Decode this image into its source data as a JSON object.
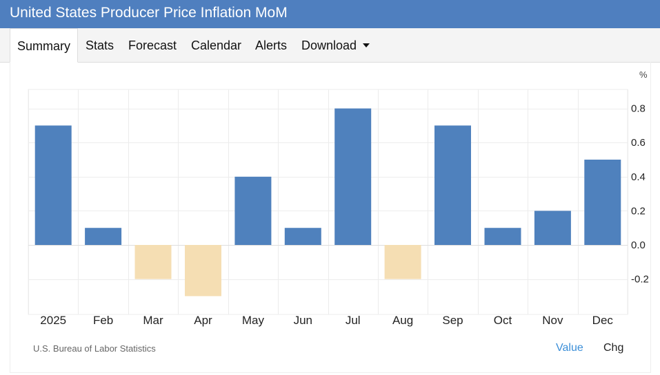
{
  "header": {
    "title": "United States Producer Price Inflation MoM"
  },
  "tabs": [
    {
      "label": "Summary",
      "active": true
    },
    {
      "label": "Stats"
    },
    {
      "label": "Forecast"
    },
    {
      "label": "Calendar"
    },
    {
      "label": "Alerts"
    },
    {
      "label": "Download",
      "icon": "caret-down-icon"
    }
  ],
  "chart_data": {
    "type": "bar",
    "title": "",
    "unit": "%",
    "categories": [
      "2025",
      "Feb",
      "Mar",
      "Apr",
      "May",
      "Jun",
      "Jul",
      "Aug",
      "Sep",
      "Oct",
      "Nov",
      "Dec"
    ],
    "values": [
      0.7,
      0.1,
      -0.2,
      -0.3,
      0.4,
      0.1,
      0.8,
      -0.2,
      0.7,
      0.1,
      0.2,
      0.5
    ],
    "ylim": [
      -0.4,
      0.9
    ],
    "yticks": [
      "0.8",
      "0.6",
      "0.4",
      "0.2",
      "0.0",
      "-0.2"
    ],
    "ytick_values": [
      0.8,
      0.6,
      0.4,
      0.2,
      0.0,
      -0.2
    ],
    "colors": {
      "positive": "#4f81bd",
      "negative": "#f5deb3",
      "grid": "#ececec",
      "zero_line": "#dddddd"
    },
    "grid": true,
    "axis_position": "right"
  },
  "footer": {
    "source": "U.S. Bureau of Labor Statistics",
    "value_label": "Value",
    "chg_label": "Chg"
  }
}
